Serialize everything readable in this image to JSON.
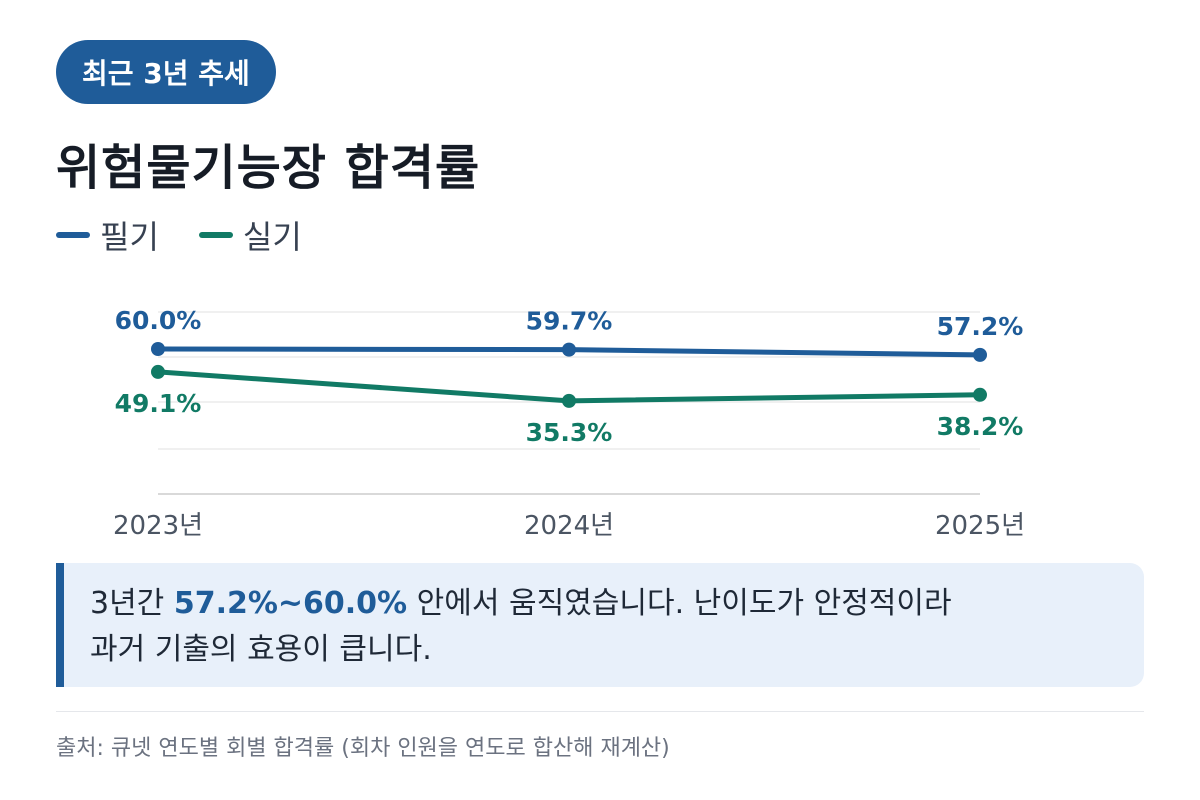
{
  "badge": "최근 3년 추세",
  "title": "위험물기능장 합격률",
  "legend": [
    {
      "label": "필기",
      "color": "#1f5c99"
    },
    {
      "label": "실기",
      "color": "#117a65"
    }
  ],
  "chart_data": {
    "type": "line",
    "title": "위험물기능장 합격률",
    "categories": [
      "2023년",
      "2024년",
      "2025년"
    ],
    "series": [
      {
        "name": "필기",
        "color": "#1f5c99",
        "values": [
          60.0,
          59.7,
          57.2
        ],
        "labels": [
          "60.0%",
          "59.7%",
          "57.2%"
        ]
      },
      {
        "name": "실기",
        "color": "#117a65",
        "values": [
          49.1,
          35.3,
          38.2
        ],
        "labels": [
          "49.1%",
          "35.3%",
          "38.2%"
        ]
      }
    ],
    "ylim": [
      20,
      70
    ],
    "grid": true,
    "legend_position": "top-left"
  },
  "callout": {
    "prefix": "3년간 ",
    "highlight": "57.2%~60.0%",
    "suffix": " 안에서 움직였습니다. 난이도가 안정적이라",
    "line2": "과거 기출의 효용이 큽니다."
  },
  "source": "출처: 큐넷 연도별 회별 합격률 (회차 인원을 연도로 합산해 재계산)"
}
